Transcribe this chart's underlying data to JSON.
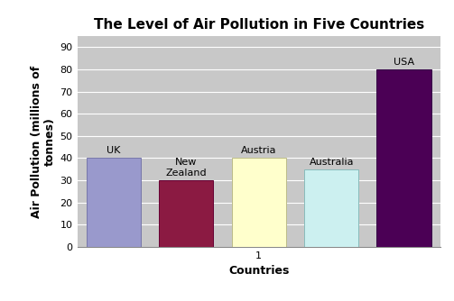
{
  "title": "The Level of Air Pollution in Five Countries",
  "xlabel": "Countries",
  "ylabel": "Air Pollution (millions of\ntonnes)",
  "categories": [
    "UK",
    "New\nZealand",
    "Austria",
    "Australia",
    "USA"
  ],
  "bar_labels": [
    "UK",
    "New\nZealand",
    "Austria",
    "Australia",
    "USA"
  ],
  "values": [
    40,
    30,
    40,
    35,
    80
  ],
  "bar_colors": [
    "#9999cc",
    "#8b1a42",
    "#ffffcc",
    "#ccf0f0",
    "#4b0055"
  ],
  "bar_edge_colors": [
    "#7777aa",
    "#660033",
    "#bbbb88",
    "#88bbbb",
    "#330044"
  ],
  "ylim": [
    0,
    95
  ],
  "yticks": [
    0,
    10,
    20,
    30,
    40,
    50,
    60,
    70,
    80,
    90
  ],
  "plot_bg_color": "#c8c8c8",
  "fig_bg_color": "#ffffff",
  "title_fontsize": 11,
  "axis_label_fontsize": 9,
  "tick_fontsize": 8,
  "bar_label_fontsize": 8
}
